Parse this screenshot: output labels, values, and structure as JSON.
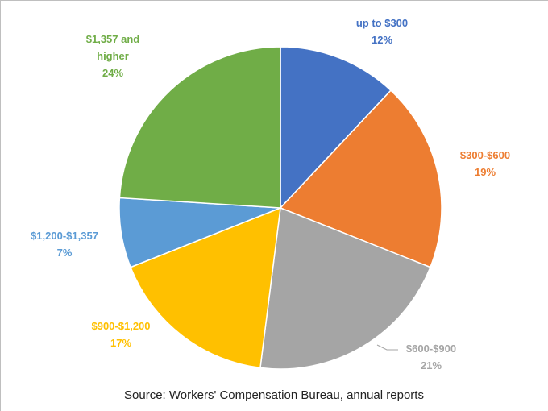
{
  "chart_data": {
    "type": "pie",
    "categories": [
      "up to $300",
      "$300-$600",
      "$600-$900",
      "$900-$1,200",
      "$1,200-$1,357",
      "$1,357 and higher"
    ],
    "values": [
      12,
      19,
      21,
      17,
      7,
      24
    ],
    "value_labels": [
      "12%",
      "19%",
      "21%",
      "17%",
      "7%",
      "24%"
    ],
    "colors": [
      "#4472c4",
      "#ed7d31",
      "#a5a5a5",
      "#ffc000",
      "#5b9bd5",
      "#70ad47"
    ],
    "source": "Source: Workers' Compensation Bureau, annual reports"
  }
}
